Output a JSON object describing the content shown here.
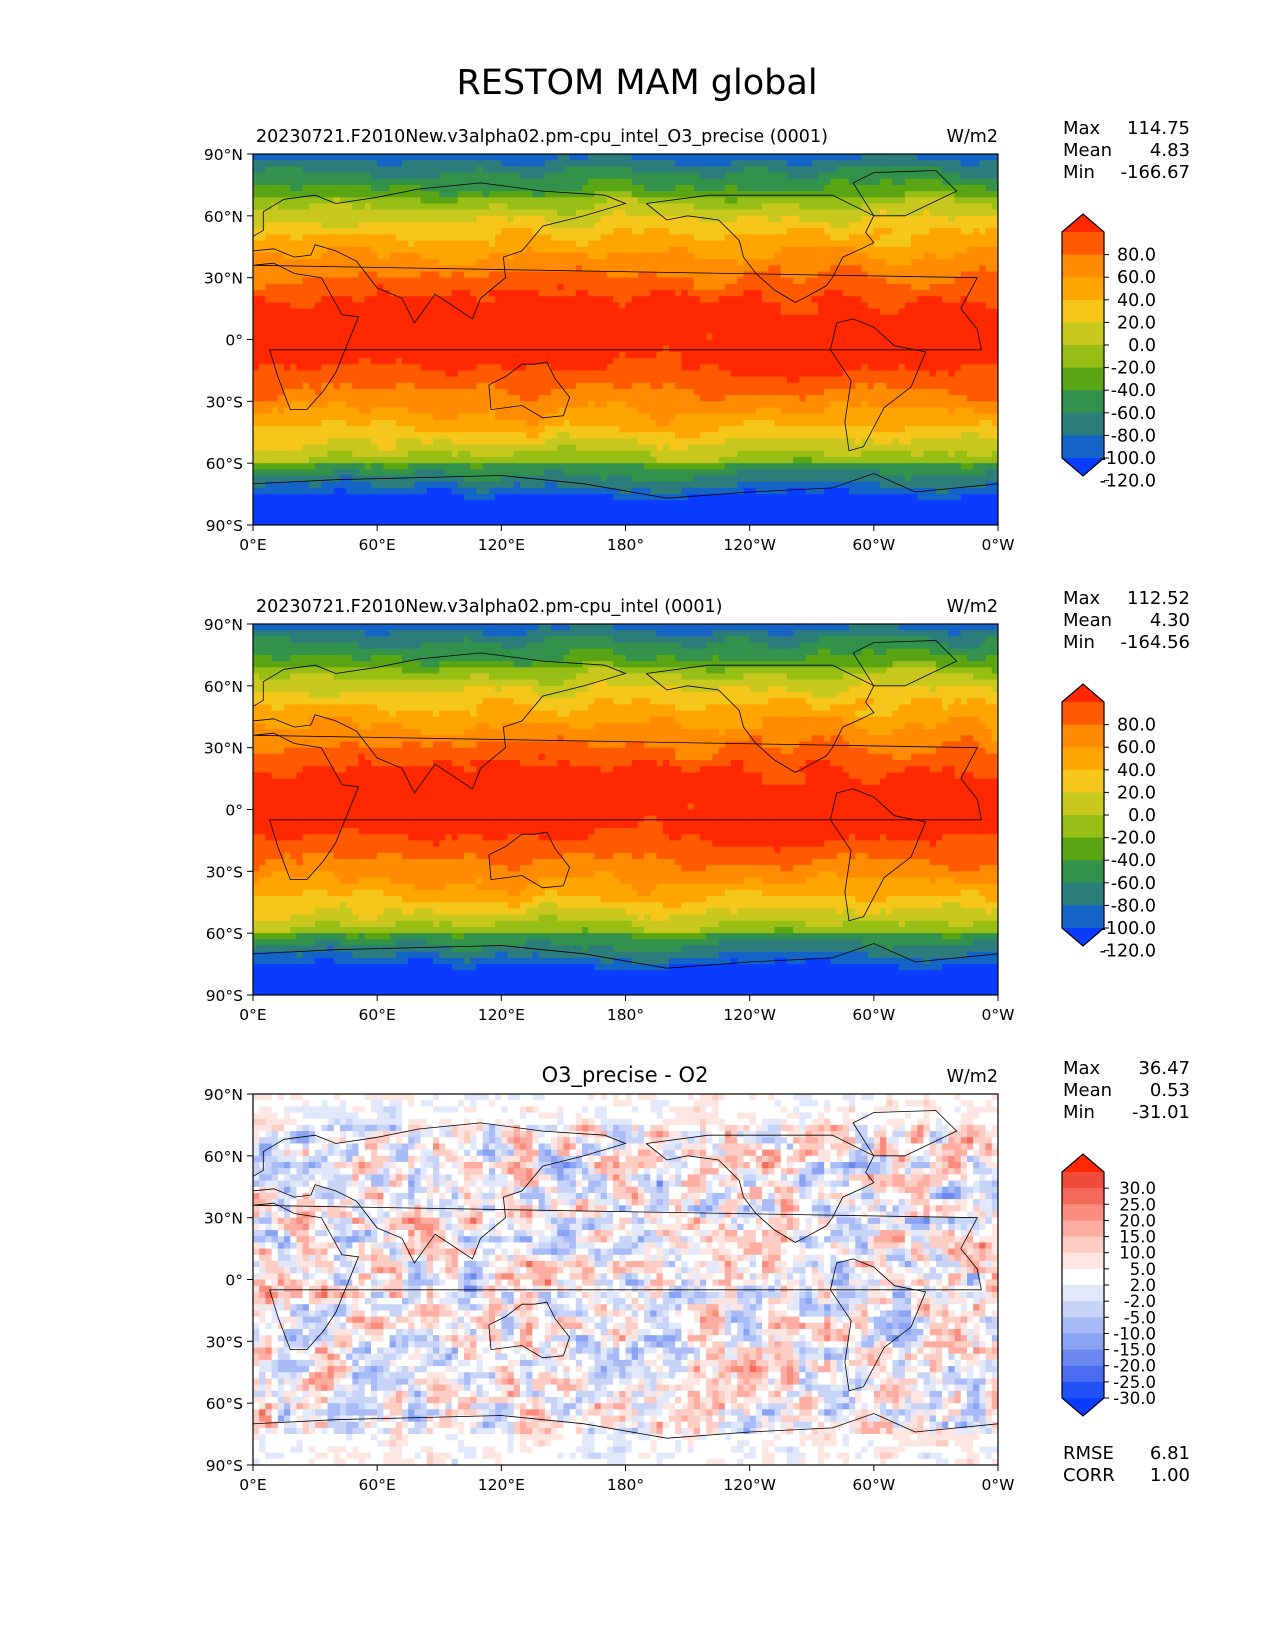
{
  "figure_title": "RESTOM MAM global",
  "chart_data": [
    {
      "type": "heatmap",
      "subtitle": "20230721.F2010New.v3alpha02.pm-cpu_intel_O3_precise (0001)",
      "units": "W/m2",
      "stats": {
        "max": "114.75",
        "mean": "4.83",
        "min": "-166.67"
      },
      "stats_labels": {
        "max": "Max",
        "mean": "Mean",
        "min": "Min"
      },
      "field": "restom_model",
      "xlim": [
        0,
        360
      ],
      "ylim": [
        -90,
        90
      ],
      "colorbar": {
        "levels": [
          "80.0",
          "60.0",
          "40.0",
          "20.0",
          "0.0",
          "-20.0",
          "-40.0",
          "-60.0",
          "-80.0",
          "-100.0",
          "-120.0"
        ],
        "colors": [
          "#ff2800",
          "#ff5a00",
          "#ff8c00",
          "#ffa500",
          "#f5c71a",
          "#c8c81e",
          "#96be14",
          "#5aa514",
          "#32914b",
          "#2d7d7d",
          "#1464c8",
          "#0a3cff"
        ],
        "extend": "both"
      }
    },
    {
      "type": "heatmap",
      "subtitle": "20230721.F2010New.v3alpha02.pm-cpu_intel (0001)",
      "units": "W/m2",
      "stats": {
        "max": "112.52",
        "mean": "4.30",
        "min": "-164.56"
      },
      "stats_labels": {
        "max": "Max",
        "mean": "Mean",
        "min": "Min"
      },
      "field": "restom_model",
      "xlim": [
        0,
        360
      ],
      "ylim": [
        -90,
        90
      ],
      "colorbar": {
        "levels": [
          "80.0",
          "60.0",
          "40.0",
          "20.0",
          "0.0",
          "-20.0",
          "-40.0",
          "-60.0",
          "-80.0",
          "-100.0",
          "-120.0"
        ],
        "colors": [
          "#ff2800",
          "#ff5a00",
          "#ff8c00",
          "#ffa500",
          "#f5c71a",
          "#c8c81e",
          "#96be14",
          "#5aa514",
          "#32914b",
          "#2d7d7d",
          "#1464c8",
          "#0a3cff"
        ],
        "extend": "both"
      }
    },
    {
      "type": "heatmap",
      "subtitle": "O3_precise - O2",
      "units": "W/m2",
      "stats": {
        "max": "36.47",
        "mean": "0.53",
        "min": "-31.01"
      },
      "stats_labels": {
        "max": "Max",
        "mean": "Mean",
        "min": "Min"
      },
      "extra_stats": {
        "rmse": "6.81",
        "corr": "1.00"
      },
      "extra_labels": {
        "rmse": "RMSE",
        "corr": "CORR"
      },
      "field": "restom_diff",
      "xlim": [
        0,
        360
      ],
      "ylim": [
        -90,
        90
      ],
      "colorbar": {
        "levels": [
          "30.0",
          "25.0",
          "20.0",
          "15.0",
          "10.0",
          "5.0",
          "2.0",
          "-2.0",
          "-5.0",
          "-10.0",
          "-15.0",
          "-20.0",
          "-25.0",
          "-30.0"
        ],
        "colors": [
          "#ff2800",
          "#ee4b3b",
          "#f46a5a",
          "#f98c7c",
          "#fcaca0",
          "#fdcdc4",
          "#fde6e2",
          "#ffffff",
          "#e2e8fb",
          "#c8d3f8",
          "#a9bbf6",
          "#8ba3f3",
          "#6b88f0",
          "#4a6cee",
          "#2151f5",
          "#0a3cff"
        ],
        "extend": "both"
      }
    }
  ],
  "x_tick_labels": [
    "0°E",
    "60°E",
    "120°E",
    "180°",
    "120°W",
    "60°W",
    "0°W"
  ],
  "y_tick_labels": [
    "90°N",
    "60°N",
    "30°N",
    "0°",
    "30°S",
    "60°S",
    "90°S"
  ],
  "lon_ticks": [
    0,
    60,
    120,
    180,
    240,
    300,
    360
  ],
  "lat_ticks": [
    90,
    60,
    30,
    0,
    -30,
    -60,
    -90
  ]
}
